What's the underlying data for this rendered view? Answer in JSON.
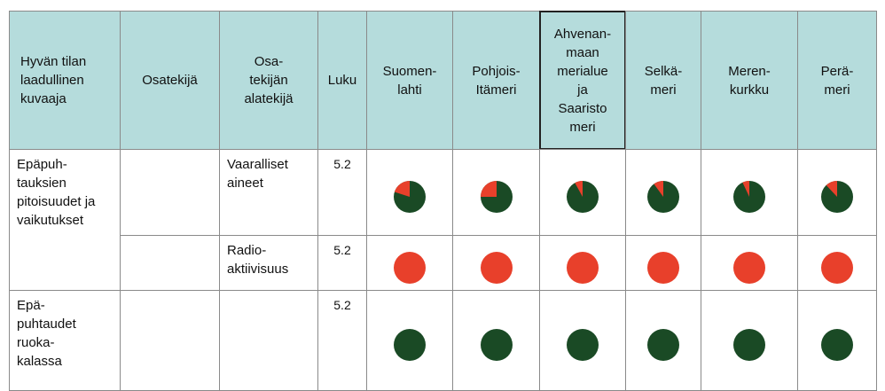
{
  "table": {
    "headers": [
      "Hyvän tilan\nlaadullinen\nkuvaaja",
      "Osatekijä",
      "Osa-\ntekijän\nalatekijä",
      "Luku",
      "Suomen-\nlahti",
      "Pohjois-\nItämeri",
      "Ahvenan-\nmaan\nmerialue\nja\nSaaristo\nmeri",
      "Selkä-\nmeri",
      "Meren-\nkurkku",
      "Perä-\nmeri"
    ],
    "pie_colors": {
      "share": "#e8402b",
      "rest": "#1a4a25"
    },
    "rows": [
      {
        "descriptor": "Epäpuh-\ntauksien\npitoisuudet ja\nvaikutukset",
        "subcomponent": "Vaaralliset\naineet",
        "chapter": "5.2",
        "red_share": [
          20,
          25,
          8,
          10,
          7,
          12
        ]
      },
      {
        "subcomponent": "Radio-\naktiivisuus",
        "chapter": "5.2",
        "red_share": [
          100,
          100,
          100,
          100,
          100,
          100
        ]
      },
      {
        "descriptor": "Epä-\npuhtaudet\nruoka-\nkalassa",
        "chapter": "5.2",
        "red_share": [
          0,
          0,
          0,
          0,
          0,
          0
        ]
      }
    ]
  }
}
